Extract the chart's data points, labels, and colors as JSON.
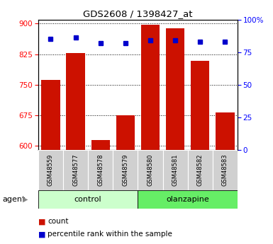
{
  "title": "GDS2608 / 1398427_at",
  "samples": [
    "GSM48559",
    "GSM48577",
    "GSM48578",
    "GSM48579",
    "GSM48580",
    "GSM48581",
    "GSM48582",
    "GSM48583"
  ],
  "groups": [
    "control",
    "control",
    "control",
    "control",
    "olanzapine",
    "olanzapine",
    "olanzapine",
    "olanzapine"
  ],
  "counts": [
    762,
    828,
    614,
    675,
    897,
    888,
    808,
    683
  ],
  "percentiles": [
    85,
    86,
    82,
    82,
    84,
    84,
    83,
    83
  ],
  "ylim_left": [
    590,
    910
  ],
  "ylim_right": [
    0,
    100
  ],
  "yticks_left": [
    600,
    675,
    750,
    825,
    900
  ],
  "yticks_right": [
    0,
    25,
    50,
    75,
    100
  ],
  "bar_color": "#cc1100",
  "dot_color": "#0000cc",
  "control_color": "#ccffcc",
  "olanzapine_color": "#66ee66",
  "tick_bg_color": "#d0d0d0",
  "bar_width": 0.75,
  "legend_count_label": "count",
  "legend_pct_label": "percentile rank within the sample"
}
